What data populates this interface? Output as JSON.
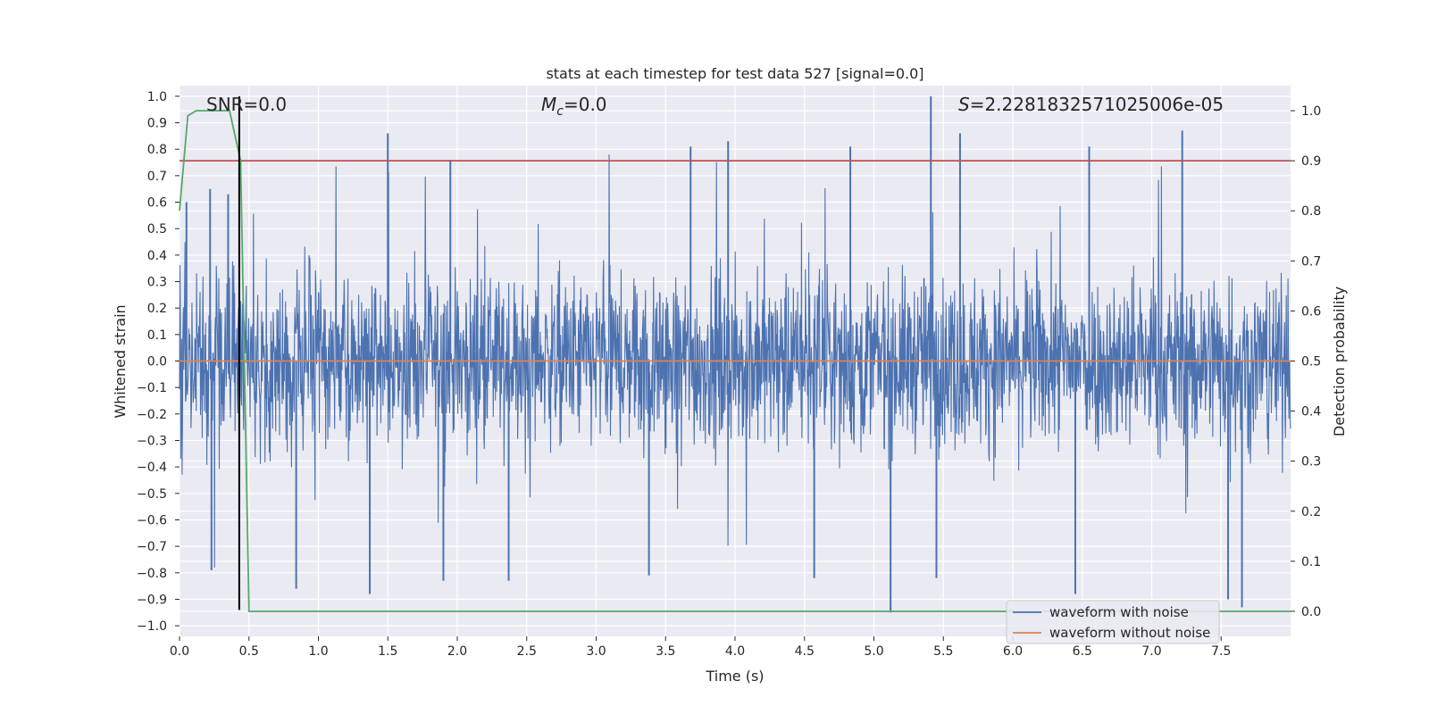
{
  "chart_data": {
    "type": "line",
    "title": "stats at each timestep for test data 527 [signal=0.0]",
    "xlabel": "Time (s)",
    "ylabel": "Whitened strain",
    "y2label": "Detection probability",
    "xlim": [
      0.0,
      8.0
    ],
    "ylim": [
      -1.04,
      1.04
    ],
    "y2lim": [
      -0.05,
      1.05
    ],
    "x_ticks": [
      0.0,
      0.5,
      1.0,
      1.5,
      2.0,
      2.5,
      3.0,
      3.5,
      4.0,
      4.5,
      5.0,
      5.5,
      6.0,
      6.5,
      7.0,
      7.5
    ],
    "y_ticks": [
      -1.0,
      -0.9,
      -0.8,
      -0.7,
      -0.6,
      -0.5,
      -0.4,
      -0.3,
      -0.2,
      -0.1,
      0.0,
      0.1,
      0.2,
      0.3,
      0.4,
      0.5,
      0.6,
      0.7,
      0.8,
      0.9,
      1.0
    ],
    "y2_ticks": [
      0.0,
      0.1,
      0.2,
      0.3,
      0.4,
      0.5,
      0.6,
      0.7,
      0.8,
      0.9,
      1.0
    ],
    "grid": true,
    "legend_position": "lower-right",
    "annotations": {
      "snr": "SNR=0.0",
      "mc_symbol": "M",
      "mc_subscript": "c",
      "mc_value": "=0.0",
      "s_symbol": "S",
      "s_value": "=2.2281832571025006e-05"
    },
    "series": [
      {
        "name": "waveform with noise",
        "axis": "left",
        "color": "#4c72b0",
        "style": "dense noise, typical envelope about ±0.3, peaks up to 1.0 near x=5.41 and down to -0.95 near x=5.12",
        "peaks": [
          {
            "x": 0.05,
            "y": 0.6
          },
          {
            "x": 0.22,
            "y": 0.65
          },
          {
            "x": 0.35,
            "y": 0.63
          },
          {
            "x": 1.5,
            "y": 0.86
          },
          {
            "x": 1.95,
            "y": 0.76
          },
          {
            "x": 3.95,
            "y": 0.83
          },
          {
            "x": 3.68,
            "y": 0.81
          },
          {
            "x": 4.83,
            "y": 0.81
          },
          {
            "x": 5.41,
            "y": 1.0
          },
          {
            "x": 5.62,
            "y": 0.86
          },
          {
            "x": 6.55,
            "y": 0.81
          },
          {
            "x": 7.22,
            "y": 0.87
          }
        ],
        "troughs": [
          {
            "x": 0.23,
            "y": -0.79
          },
          {
            "x": 0.84,
            "y": -0.86
          },
          {
            "x": 1.37,
            "y": -0.88
          },
          {
            "x": 1.9,
            "y": -0.83
          },
          {
            "x": 2.37,
            "y": -0.83
          },
          {
            "x": 3.38,
            "y": -0.81
          },
          {
            "x": 4.57,
            "y": -0.82
          },
          {
            "x": 5.12,
            "y": -0.95
          },
          {
            "x": 5.45,
            "y": -0.82
          },
          {
            "x": 6.45,
            "y": -0.88
          },
          {
            "x": 7.55,
            "y": -0.9
          },
          {
            "x": 7.65,
            "y": -0.93
          }
        ]
      },
      {
        "name": "waveform without noise",
        "axis": "left",
        "color": "#dd8452",
        "x": [
          0.0,
          8.0
        ],
        "y": [
          0.0,
          0.0
        ]
      },
      {
        "name": "",
        "axis": "right",
        "color": "#55a868",
        "x": [
          0.0,
          0.06,
          0.12,
          0.18,
          0.24,
          0.3,
          0.36,
          0.4,
          0.44,
          0.5,
          0.7,
          8.0
        ],
        "y": [
          0.8,
          0.99,
          1.0,
          1.0,
          1.0,
          1.0,
          1.0,
          0.95,
          0.9,
          0.0,
          0.0,
          0.0
        ]
      }
    ],
    "threshold": {
      "axis": "right",
      "value": 0.9,
      "color": "#c44e52"
    },
    "marker_line": {
      "x": 0.43,
      "y_from": -0.94,
      "y_to": 1.0,
      "color": "#000000"
    }
  }
}
